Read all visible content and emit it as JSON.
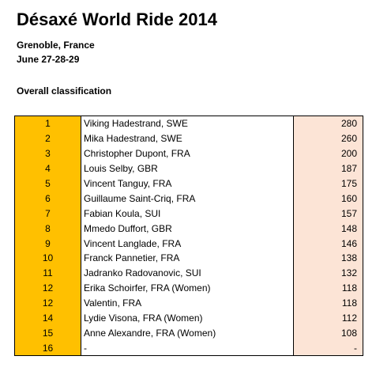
{
  "header": {
    "title": "Désaxé World Ride 2014",
    "location": "Grenoble, France",
    "dates": "June 27-28-29",
    "section": "Overall classification"
  },
  "colors": {
    "rank_column": "#FFC000",
    "points_column": "#FCE4D6",
    "border": "#000000"
  },
  "table": {
    "columns": [
      "rank",
      "rider",
      "points"
    ],
    "rows": [
      {
        "rank": "1",
        "rider": "Viking Hadestrand, SWE",
        "points": "280"
      },
      {
        "rank": "2",
        "rider": "Mika Hadestrand, SWE",
        "points": "260"
      },
      {
        "rank": "3",
        "rider": "Christopher Dupont, FRA",
        "points": "200"
      },
      {
        "rank": "4",
        "rider": "Louis Selby, GBR",
        "points": "187"
      },
      {
        "rank": "5",
        "rider": "Vincent Tanguy, FRA",
        "points": "175"
      },
      {
        "rank": "6",
        "rider": "Guillaume Saint-Criq, FRA",
        "points": "160"
      },
      {
        "rank": "7",
        "rider": "Fabian Koula, SUI",
        "points": "157"
      },
      {
        "rank": "8",
        "rider": "Mmedo Duffort, GBR",
        "points": "148"
      },
      {
        "rank": "9",
        "rider": "Vincent Langlade, FRA",
        "points": "146"
      },
      {
        "rank": "10",
        "rider": "Franck Pannetier, FRA",
        "points": "138"
      },
      {
        "rank": "11",
        "rider": "Jadranko Radovanovic, SUI",
        "points": "132"
      },
      {
        "rank": "12",
        "rider": "Erika Schoirfer, FRA (Women)",
        "points": "118"
      },
      {
        "rank": "12",
        "rider": "Valentin, FRA",
        "points": "118"
      },
      {
        "rank": "14",
        "rider": "Lydie Visona, FRA (Women)",
        "points": "112"
      },
      {
        "rank": "15",
        "rider": "Anne Alexandre, FRA (Women)",
        "points": "108"
      },
      {
        "rank": "16",
        "rider": "-",
        "points": "-"
      }
    ]
  }
}
